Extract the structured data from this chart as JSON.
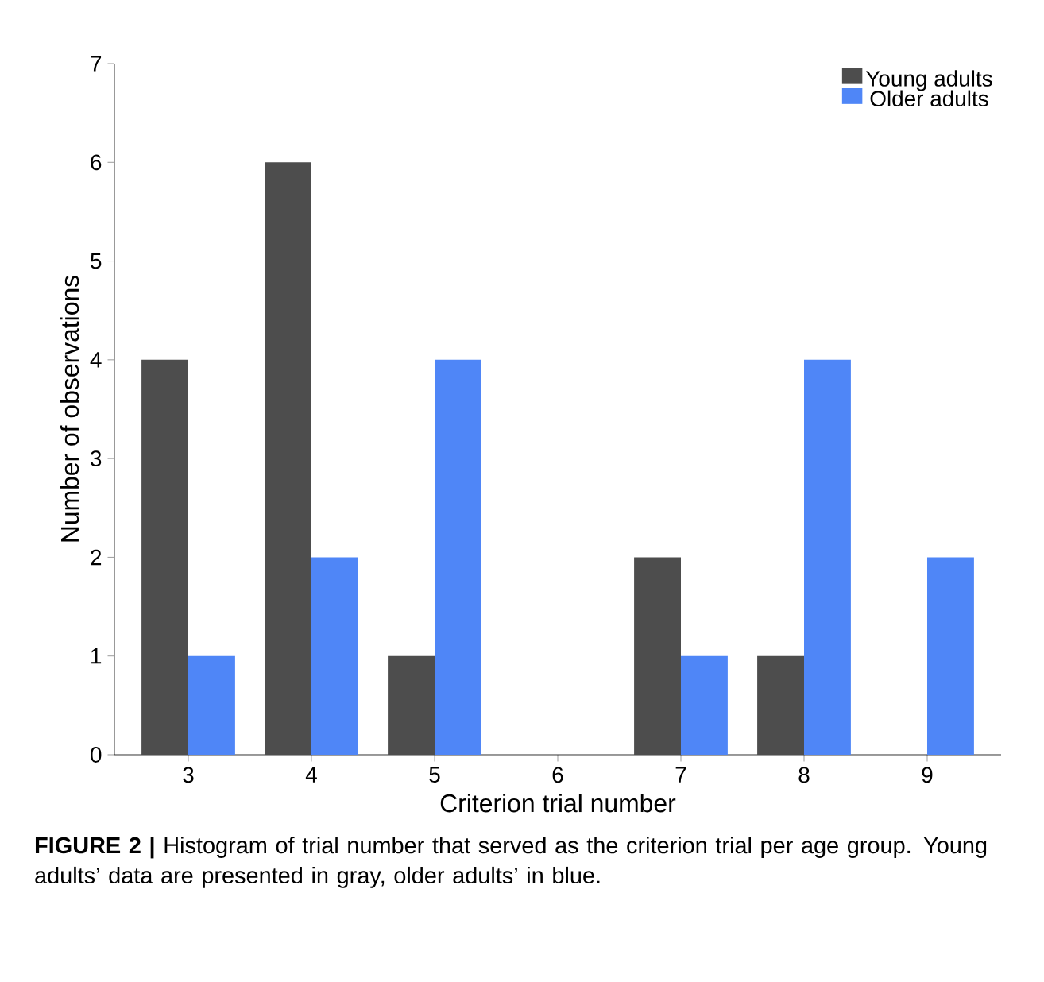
{
  "chart_data": {
    "type": "bar",
    "categories": [
      "3",
      "4",
      "5",
      "6",
      "7",
      "8",
      "9"
    ],
    "series": [
      {
        "name": "Young adults",
        "color": "#4d4d4d",
        "values": [
          4,
          6,
          1,
          0,
          2,
          1,
          0
        ]
      },
      {
        "name": "Older adults",
        "color": "#4f86f7",
        "values": [
          1,
          2,
          4,
          0,
          1,
          4,
          2
        ]
      }
    ],
    "xlabel": "Criterion trial number",
    "ylabel": "Number of observations",
    "ylim": [
      0,
      7
    ],
    "yticks": [
      0,
      1,
      2,
      3,
      4,
      5,
      6,
      7
    ],
    "legend": "top right",
    "annotations": [
      "**FIGURE 2 |** Histogram of trial number that served as the criterion trial per age group. Young adults’ data are presented in gray, older adults’ in blue."
    ]
  }
}
